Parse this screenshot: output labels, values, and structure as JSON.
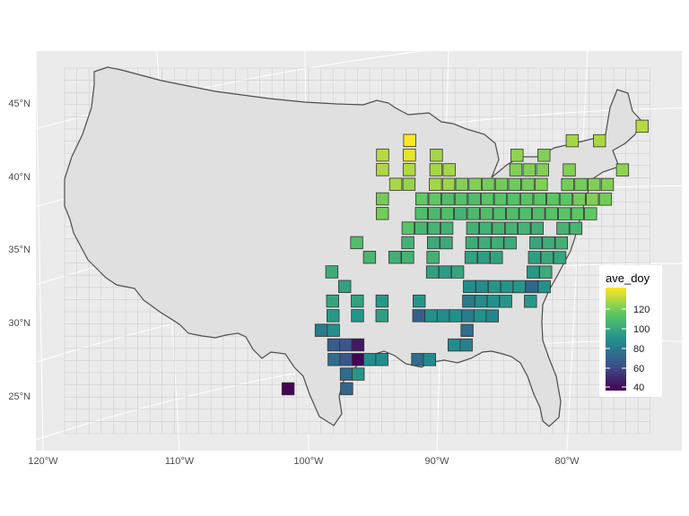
{
  "chart_data": {
    "type": "heatmap",
    "title": "",
    "xlabel": "",
    "ylabel": "",
    "x_ticks": [
      "120°W",
      "110°W",
      "100°W",
      "90°W",
      "80°W"
    ],
    "y_ticks": [
      "25°N",
      "30°N",
      "35°N",
      "40°N",
      "45°N"
    ],
    "legend": {
      "title": "ave_doy",
      "ticks": [
        "120",
        "100",
        "80",
        "60",
        "40"
      ],
      "range": [
        35,
        128
      ],
      "position": "right",
      "palette": [
        "#440154",
        "#3b528b",
        "#21908c",
        "#5dc863",
        "#fde725"
      ]
    },
    "background_color": "#ebebeb",
    "land_color": "#e0e0e0",
    "cell_values": [
      [
        92.5,
        42.5,
        128
      ],
      [
        92.5,
        41.5,
        125
      ],
      [
        94.5,
        41.5,
        118
      ],
      [
        90.5,
        41.5,
        115
      ],
      [
        84.5,
        41.5,
        112
      ],
      [
        82.5,
        41.5,
        110
      ],
      [
        80.5,
        42.5,
        115
      ],
      [
        78.5,
        42.5,
        116
      ],
      [
        75.5,
        43.5,
        118
      ],
      [
        94.5,
        40.5,
        117
      ],
      [
        92.5,
        40.5,
        117
      ],
      [
        90.5,
        40.5,
        115
      ],
      [
        89.5,
        40.5,
        115
      ],
      [
        84.5,
        40.5,
        110
      ],
      [
        83.5,
        40.5,
        110
      ],
      [
        82.5,
        40.5,
        110
      ],
      [
        80.5,
        40.5,
        110
      ],
      [
        76.5,
        40.5,
        112
      ],
      [
        93.5,
        39.5,
        116
      ],
      [
        92.5,
        39.5,
        113
      ],
      [
        90.5,
        39.5,
        115
      ],
      [
        89.5,
        39.5,
        114
      ],
      [
        88.5,
        39.5,
        110
      ],
      [
        87.5,
        39.5,
        110
      ],
      [
        86.5,
        39.5,
        108
      ],
      [
        85.5,
        39.5,
        108
      ],
      [
        84.5,
        39.5,
        107
      ],
      [
        83.5,
        39.5,
        108
      ],
      [
        82.5,
        39.5,
        110
      ],
      [
        80.5,
        39.5,
        108
      ],
      [
        79.5,
        39.5,
        108
      ],
      [
        78.5,
        39.5,
        110
      ],
      [
        77.5,
        39.5,
        110
      ],
      [
        94.5,
        38.5,
        108
      ],
      [
        91.5,
        38.5,
        105
      ],
      [
        90.5,
        38.5,
        105
      ],
      [
        89.5,
        38.5,
        100
      ],
      [
        88.5,
        38.5,
        102
      ],
      [
        87.5,
        38.5,
        100
      ],
      [
        86.5,
        38.5,
        103
      ],
      [
        85.5,
        38.5,
        103
      ],
      [
        84.5,
        38.5,
        102
      ],
      [
        83.5,
        38.5,
        103
      ],
      [
        82.5,
        38.5,
        103
      ],
      [
        81.5,
        38.5,
        104
      ],
      [
        80.5,
        38.5,
        104
      ],
      [
        79.5,
        38.5,
        108
      ],
      [
        78.5,
        38.5,
        110
      ],
      [
        77.5,
        38.5,
        108
      ],
      [
        94.5,
        37.5,
        108
      ],
      [
        91.5,
        37.5,
        100
      ],
      [
        90.5,
        37.5,
        98
      ],
      [
        89.5,
        37.5,
        100
      ],
      [
        88.5,
        37.5,
        96
      ],
      [
        87.5,
        37.5,
        98
      ],
      [
        86.5,
        37.5,
        100
      ],
      [
        85.5,
        37.5,
        100
      ],
      [
        84.5,
        37.5,
        100
      ],
      [
        83.5,
        37.5,
        100
      ],
      [
        82.5,
        37.5,
        100
      ],
      [
        81.5,
        37.5,
        102
      ],
      [
        80.5,
        37.5,
        103
      ],
      [
        79.5,
        37.5,
        104
      ],
      [
        78.5,
        37.5,
        105
      ],
      [
        92.5,
        36.5,
        103
      ],
      [
        91.5,
        36.5,
        97
      ],
      [
        90.5,
        36.5,
        96
      ],
      [
        89.5,
        36.5,
        95
      ],
      [
        87.5,
        36.5,
        95
      ],
      [
        86.5,
        36.5,
        95
      ],
      [
        85.5,
        36.5,
        96
      ],
      [
        84.5,
        36.5,
        96
      ],
      [
        83.5,
        36.5,
        96
      ],
      [
        82.5,
        36.5,
        94
      ],
      [
        80.5,
        36.5,
        97
      ],
      [
        79.5,
        36.5,
        97
      ],
      [
        96.5,
        35.5,
        100
      ],
      [
        92.5,
        35.5,
        95
      ],
      [
        90.5,
        35.5,
        92
      ],
      [
        89.5,
        35.5,
        92
      ],
      [
        87.5,
        35.5,
        93
      ],
      [
        86.5,
        35.5,
        93
      ],
      [
        85.5,
        35.5,
        94
      ],
      [
        84.5,
        35.5,
        92
      ],
      [
        82.5,
        35.5,
        90
      ],
      [
        81.5,
        35.5,
        93
      ],
      [
        80.5,
        35.5,
        95
      ],
      [
        95.5,
        34.5,
        97
      ],
      [
        93.5,
        34.5,
        94
      ],
      [
        92.5,
        34.5,
        96
      ],
      [
        90.5,
        34.5,
        95
      ],
      [
        87.5,
        34.5,
        88
      ],
      [
        86.5,
        34.5,
        87
      ],
      [
        85.5,
        34.5,
        89
      ],
      [
        82.5,
        34.5,
        87
      ],
      [
        81.5,
        34.5,
        91
      ],
      [
        80.5,
        34.5,
        90
      ],
      [
        98.5,
        33.5,
        93
      ],
      [
        90.5,
        33.5,
        88
      ],
      [
        89.5,
        33.5,
        86
      ],
      [
        88.5,
        33.5,
        90
      ],
      [
        82.5,
        33.5,
        85
      ],
      [
        81.5,
        33.5,
        92
      ],
      [
        97.5,
        32.5,
        88
      ],
      [
        87.5,
        32.5,
        80
      ],
      [
        86.5,
        32.5,
        80
      ],
      [
        85.5,
        32.5,
        84
      ],
      [
        84.5,
        32.5,
        83
      ],
      [
        83.5,
        32.5,
        84
      ],
      [
        82.5,
        32.5,
        66
      ],
      [
        81.5,
        32.5,
        82
      ],
      [
        98.5,
        31.5,
        90
      ],
      [
        96.5,
        31.5,
        88
      ],
      [
        94.5,
        31.5,
        84
      ],
      [
        91.5,
        31.5,
        84
      ],
      [
        87.5,
        31.5,
        73
      ],
      [
        86.5,
        31.5,
        80
      ],
      [
        85.5,
        31.5,
        82
      ],
      [
        84.5,
        31.5,
        84
      ],
      [
        82.5,
        31.5,
        84
      ],
      [
        98.5,
        30.5,
        85
      ],
      [
        96.5,
        30.5,
        83
      ],
      [
        94.5,
        30.5,
        87
      ],
      [
        91.5,
        30.5,
        63
      ],
      [
        90.5,
        30.5,
        82
      ],
      [
        89.5,
        30.5,
        80
      ],
      [
        88.5,
        30.5,
        82
      ],
      [
        87.5,
        30.5,
        74
      ],
      [
        86.5,
        30.5,
        82
      ],
      [
        85.5,
        30.5,
        77
      ],
      [
        99.5,
        29.5,
        74
      ],
      [
        98.5,
        29.5,
        82
      ],
      [
        87.5,
        29.5,
        68
      ],
      [
        98.5,
        28.5,
        62
      ],
      [
        97.5,
        28.5,
        60
      ],
      [
        96.5,
        28.5,
        42
      ],
      [
        88.5,
        28.5,
        80
      ],
      [
        87.5,
        28.5,
        76
      ],
      [
        98.5,
        27.5,
        68
      ],
      [
        97.5,
        27.5,
        60
      ],
      [
        96.5,
        27.5,
        36
      ],
      [
        95.5,
        27.5,
        80
      ],
      [
        94.5,
        27.5,
        80
      ],
      [
        91.5,
        27.5,
        68
      ],
      [
        90.5,
        27.5,
        80
      ],
      [
        97.5,
        26.5,
        68
      ],
      [
        96.5,
        26.5,
        84
      ],
      [
        102.5,
        25.5,
        36
      ],
      [
        97.5,
        25.5,
        66
      ]
    ]
  }
}
